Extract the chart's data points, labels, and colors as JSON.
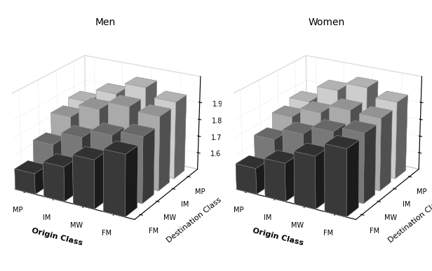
{
  "title_men": "Men",
  "title_women": "Women",
  "xlabel": "Origin Class",
  "ylabel_depth": "Destination Class",
  "origin_classes": [
    "MP",
    "IM",
    "MW",
    "FM"
  ],
  "dest_classes": [
    "MP",
    "IM",
    "MW",
    "FM"
  ],
  "zmin": 1.5,
  "zmax": 2.05,
  "zticks": [
    1.6,
    1.7,
    1.8,
    1.9
  ],
  "men_data": {
    "MP_dest": [
      1.85,
      1.93,
      2.0,
      1.95
    ],
    "IM_dest": [
      1.82,
      1.9,
      1.95,
      1.93
    ],
    "MW_dest": [
      1.72,
      1.8,
      1.85,
      1.88
    ],
    "FM_dest": [
      1.62,
      1.7,
      1.78,
      1.85
    ]
  },
  "women_data": {
    "MP_dest": [
      1.85,
      1.95,
      2.0,
      1.95
    ],
    "IM_dest": [
      1.82,
      1.88,
      1.93,
      1.92
    ],
    "MW_dest": [
      1.75,
      1.82,
      1.87,
      1.9
    ],
    "FM_dest": [
      1.65,
      1.72,
      1.8,
      1.88
    ]
  },
  "men_values": [
    [
      1.85,
      1.93,
      2.0,
      1.95
    ],
    [
      1.82,
      1.9,
      1.95,
      1.93
    ],
    [
      1.72,
      1.8,
      1.85,
      1.88
    ],
    [
      1.62,
      1.7,
      1.78,
      1.85
    ]
  ],
  "women_values": [
    [
      1.85,
      1.95,
      2.0,
      1.95
    ],
    [
      1.82,
      1.88,
      1.93,
      1.92
    ],
    [
      1.75,
      1.82,
      1.87,
      1.9
    ],
    [
      1.65,
      1.72,
      1.8,
      1.88
    ]
  ],
  "dest_colors": [
    "#e8e8e8",
    "#c0c0c0",
    "#888888",
    "#404040"
  ],
  "bar_alpha": 1.0,
  "bar_width": 0.7,
  "bar_depth": 0.7,
  "elev": 22,
  "azim": -60,
  "title_fontsize": 10,
  "axis_label_fontsize": 8,
  "tick_fontsize": 7,
  "xlabel_fontweight": "bold",
  "ylabel_fontweight": "normal"
}
